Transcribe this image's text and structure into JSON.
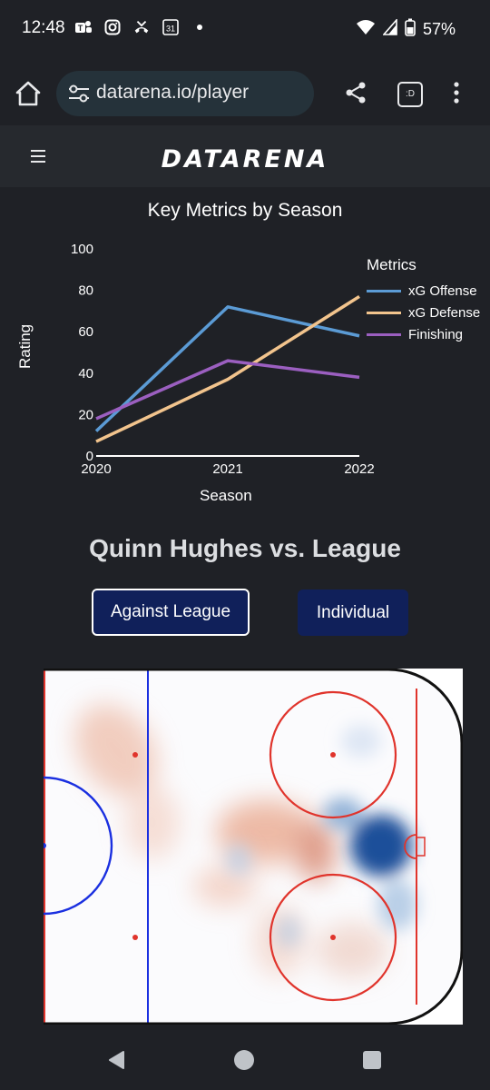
{
  "status_bar": {
    "time": "12:48",
    "battery": "57%",
    "left_icons": [
      "teams-icon",
      "instagram-icon",
      "missed-call-icon",
      "calendar-icon",
      "dot-icon"
    ],
    "calendar_day": "31",
    "right_icons": [
      "wifi-icon",
      "signal-icon",
      "battery-icon"
    ]
  },
  "browser": {
    "url": "datarena.io/player",
    "tabs_label": ":D"
  },
  "site": {
    "logo_text": "DATARENA"
  },
  "chart_data": {
    "type": "line",
    "title": "Key Metrics by Season",
    "xlabel": "Season",
    "ylabel": "Rating",
    "x": [
      2020,
      2021,
      2022
    ],
    "x_ticks": [
      "2020",
      "2021",
      "2022"
    ],
    "y_ticks": [
      "0",
      "20",
      "40",
      "60",
      "80",
      "100"
    ],
    "ylim": [
      0,
      100
    ],
    "legend_title": "Metrics",
    "legend_position": "right",
    "series": [
      {
        "name": "xG Offense",
        "values": [
          12,
          72,
          58
        ],
        "color": "#5b9bd5"
      },
      {
        "name": "xG Defense",
        "values": [
          7,
          37,
          77
        ],
        "color": "#f2c48d"
      },
      {
        "name": "Finishing",
        "values": [
          18,
          46,
          38
        ],
        "color": "#9b5fc0"
      }
    ]
  },
  "player": {
    "title": "Quinn Hughes vs. League",
    "buttons": {
      "against_league": "Against League",
      "individual": "Individual"
    }
  },
  "rink_colors": {
    "red_line": "#e0342c",
    "blue_line": "#1a2fe0",
    "heat_positive": "#c8502a",
    "heat_negative": "#1c4f9a"
  }
}
